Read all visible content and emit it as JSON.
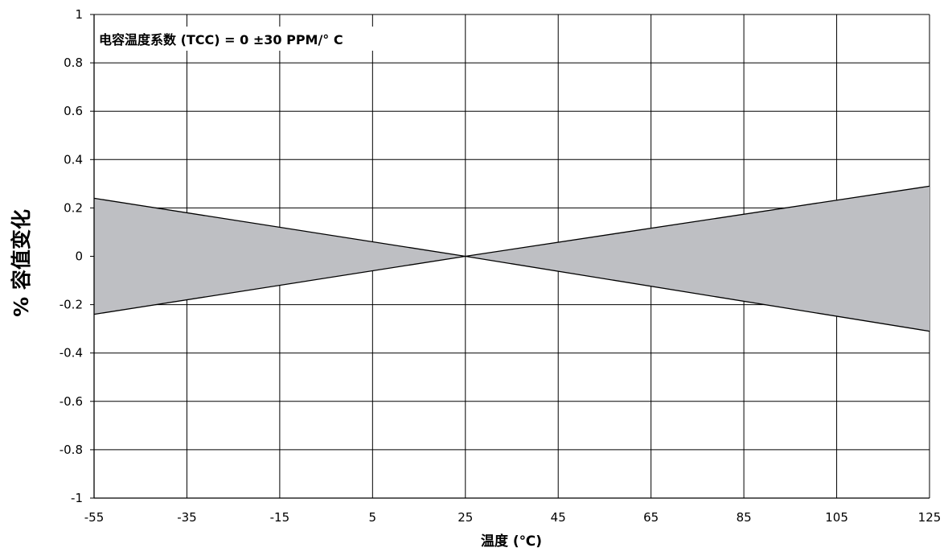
{
  "chart_data": {
    "type": "area",
    "title": "",
    "annotation": "电容温度系数 (TCC) = 0 ±30 PPM/° C",
    "xlabel": "温度 (℃)",
    "ylabel": "% 容值变化",
    "xlim": [
      -55,
      125
    ],
    "ylim": [
      -1,
      1
    ],
    "x_ticks": [
      -55,
      -35,
      -15,
      5,
      25,
      45,
      65,
      85,
      105,
      125
    ],
    "y_ticks": [
      1,
      0.8,
      0.6,
      0.4,
      0.2,
      0,
      -0.2,
      -0.4,
      -0.6,
      -0.8,
      -1
    ],
    "y_tick_labels": [
      "1",
      "0.8",
      "0.6",
      "0.4",
      "0.2",
      "0",
      "-0.2",
      "-0.4",
      "-0.6",
      "-0.8",
      "-1"
    ],
    "grid": true,
    "fill_color": "#bebfc3",
    "line_color": "#000000",
    "series": [
      {
        "x": [
          -55,
          25,
          125
        ],
        "values": [
          0.24,
          0,
          0.29
        ]
      },
      {
        "x": [
          -55,
          25,
          125
        ],
        "values": [
          -0.24,
          0,
          -0.31
        ]
      }
    ]
  }
}
